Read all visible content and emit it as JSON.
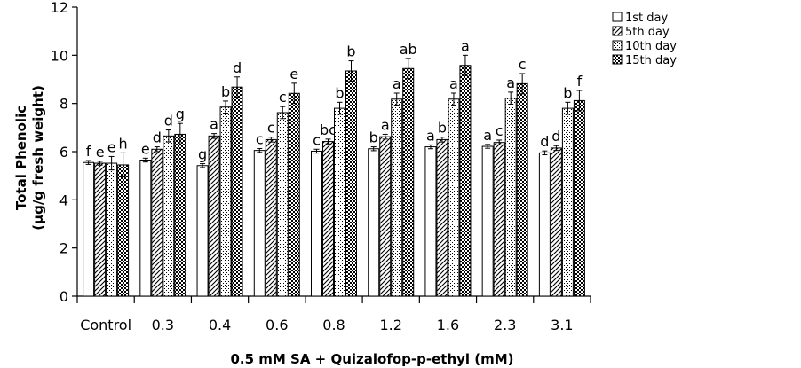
{
  "chart_data": {
    "type": "bar",
    "title": "",
    "xlabel": "0.5 mM SA + Quizalofop-p-ethyl (mM)",
    "ylabel_line1": "Total Phenolic",
    "ylabel_line2": "(µg/g fresh weight)",
    "ylim": [
      0,
      12
    ],
    "yticks": [
      0,
      2,
      4,
      6,
      8,
      10,
      12
    ],
    "ytick_labels": [
      "0",
      "2",
      "4",
      "6",
      "8",
      "10",
      "12"
    ],
    "categories": [
      "Control",
      "0.3",
      "0.4",
      "0.6",
      "0.8",
      "1.2",
      "1.6",
      "2.3",
      "3.1"
    ],
    "series": [
      {
        "name": "1st  day",
        "pattern": "white",
        "values": [
          5.55,
          5.65,
          5.42,
          6.05,
          6.02,
          6.12,
          6.2,
          6.22,
          5.95
        ],
        "errors": [
          0.08,
          0.08,
          0.08,
          0.08,
          0.08,
          0.08,
          0.08,
          0.08,
          0.08
        ],
        "labels": [
          "f",
          "e",
          "g",
          "c",
          "c",
          "b",
          "a",
          "a",
          "d"
        ]
      },
      {
        "name": "5th day",
        "pattern": "diagonal",
        "values": [
          5.52,
          6.1,
          6.65,
          6.5,
          6.42,
          6.62,
          6.5,
          6.38,
          6.15
        ],
        "errors": [
          0.08,
          0.1,
          0.1,
          0.1,
          0.1,
          0.1,
          0.1,
          0.1,
          0.1
        ],
        "labels": [
          "e",
          "d",
          "a",
          "c",
          "bc",
          "a",
          "b",
          "c",
          "d"
        ]
      },
      {
        "name": "10th day",
        "pattern": "dots",
        "values": [
          5.52,
          6.65,
          7.85,
          7.62,
          7.8,
          8.18,
          8.18,
          8.22,
          7.8
        ],
        "errors": [
          0.28,
          0.25,
          0.25,
          0.25,
          0.25,
          0.25,
          0.25,
          0.25,
          0.25
        ],
        "labels": [
          "e",
          "d",
          "b",
          "c",
          "b",
          "a",
          "a",
          "a",
          "b"
        ]
      },
      {
        "name": "15th day",
        "pattern": "checker",
        "values": [
          5.45,
          6.72,
          8.68,
          8.42,
          9.35,
          9.45,
          9.58,
          8.82,
          8.12
        ],
        "errors": [
          0.5,
          0.45,
          0.42,
          0.42,
          0.42,
          0.42,
          0.42,
          0.42,
          0.42
        ],
        "labels": [
          "h",
          "g",
          "d",
          "e",
          "b",
          "ab",
          "a",
          "c",
          "f"
        ]
      }
    ],
    "legend_position": "top-right",
    "grid": false
  }
}
